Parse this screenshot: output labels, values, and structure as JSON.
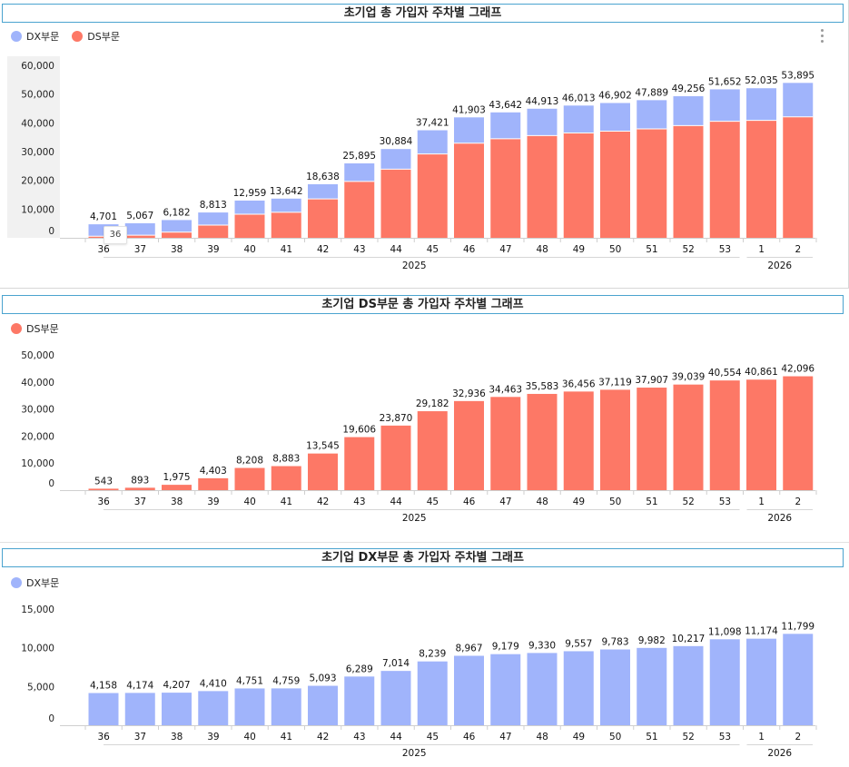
{
  "colors": {
    "dx": "#a0b4fb",
    "ds": "#fd7866",
    "panel_border": "#4aa3cf"
  },
  "panels": [
    {
      "title": "초기업 총 가입자 주차별 그래프",
      "legend": [
        "DX부문",
        "DS부문"
      ]
    },
    {
      "title": "초기업 DS부문 총 가입자 주차별 그래프",
      "legend": [
        "DS부문"
      ]
    },
    {
      "title": "초기업 DX부문 총 가입자 주차별 그래프",
      "legend": [
        "DX부문"
      ]
    }
  ],
  "tooltip": {
    "label": "36"
  },
  "chart_data": [
    {
      "type": "bar",
      "stacked": true,
      "title": "초기업 총 가입자 주차별 그래프",
      "categories": [
        "36",
        "37",
        "38",
        "39",
        "40",
        "41",
        "42",
        "43",
        "44",
        "45",
        "46",
        "47",
        "48",
        "49",
        "50",
        "51",
        "52",
        "53",
        "1",
        "2"
      ],
      "year_labels": [
        {
          "label": "2025",
          "from": "36",
          "to": "53"
        },
        {
          "label": "2026",
          "from": "1",
          "to": "2"
        }
      ],
      "series": [
        {
          "name": "DS부문",
          "values": [
            543,
            893,
            1975,
            4403,
            8208,
            8883,
            13545,
            19606,
            23870,
            29182,
            32936,
            34463,
            35583,
            36456,
            37119,
            37907,
            39039,
            40554,
            40861,
            42096
          ]
        },
        {
          "name": "DX부문",
          "values": [
            4158,
            4174,
            4207,
            4410,
            4751,
            4759,
            5093,
            6289,
            7014,
            8239,
            8967,
            9179,
            9330,
            9557,
            9783,
            9982,
            10217,
            11098,
            11174,
            11799
          ]
        }
      ],
      "totals": [
        "4,701",
        "5,067",
        "6,182",
        "8,813",
        "12,959",
        "13,642",
        "18,638",
        "25,895",
        "30,884",
        "37,421",
        "41,903",
        "43,642",
        "44,913",
        "46,013",
        "46,902",
        "47,889",
        "49,256",
        "51,652",
        "52,035",
        "53,895"
      ],
      "yticks": [
        "0",
        "10,000",
        "20,000",
        "30,000",
        "40,000",
        "50,000",
        "60,000"
      ],
      "ylim": [
        0,
        60000
      ]
    },
    {
      "type": "bar",
      "title": "초기업 DS부문 총 가입자 주차별 그래프",
      "categories": [
        "36",
        "37",
        "38",
        "39",
        "40",
        "41",
        "42",
        "43",
        "44",
        "45",
        "46",
        "47",
        "48",
        "49",
        "50",
        "51",
        "52",
        "53",
        "1",
        "2"
      ],
      "year_labels": [
        {
          "label": "2025",
          "from": "36",
          "to": "53"
        },
        {
          "label": "2026",
          "from": "1",
          "to": "2"
        }
      ],
      "series": [
        {
          "name": "DS부문",
          "values": [
            543,
            893,
            1975,
            4403,
            8208,
            8883,
            13545,
            19606,
            23870,
            29182,
            32936,
            34463,
            35583,
            36456,
            37119,
            37907,
            39039,
            40554,
            40861,
            42096
          ]
        }
      ],
      "labels": [
        "543",
        "893",
        "1,975",
        "4,403",
        "8,208",
        "8,883",
        "13,545",
        "19,606",
        "23,870",
        "29,182",
        "32,936",
        "34,463",
        "35,583",
        "36,456",
        "37,119",
        "37,907",
        "39,039",
        "40,554",
        "40,861",
        "42,096"
      ],
      "yticks": [
        "0",
        "10,000",
        "20,000",
        "30,000",
        "40,000",
        "50,000"
      ],
      "ylim": [
        0,
        50000
      ]
    },
    {
      "type": "bar",
      "title": "초기업 DX부문 총 가입자 주차별 그래프",
      "categories": [
        "36",
        "37",
        "38",
        "39",
        "40",
        "41",
        "42",
        "43",
        "44",
        "45",
        "46",
        "47",
        "48",
        "49",
        "50",
        "51",
        "52",
        "53",
        "1",
        "2"
      ],
      "year_labels": [
        {
          "label": "2025",
          "from": "36",
          "to": "53"
        },
        {
          "label": "2026",
          "from": "1",
          "to": "2"
        }
      ],
      "series": [
        {
          "name": "DX부문",
          "values": [
            4158,
            4174,
            4207,
            4410,
            4751,
            4759,
            5093,
            6289,
            7014,
            8239,
            8967,
            9179,
            9330,
            9557,
            9783,
            9982,
            10217,
            11098,
            11174,
            11799
          ]
        }
      ],
      "labels": [
        "4,158",
        "4,174",
        "4,207",
        "4,410",
        "4,751",
        "4,759",
        "5,093",
        "6,289",
        "7,014",
        "8,239",
        "8,967",
        "9,179",
        "9,330",
        "9,557",
        "9,783",
        "9,982",
        "10,217",
        "11,098",
        "11,174",
        "11,799"
      ],
      "yticks": [
        "0",
        "5,000",
        "10,000",
        "15,000"
      ],
      "ylim": [
        0,
        15000
      ]
    }
  ]
}
